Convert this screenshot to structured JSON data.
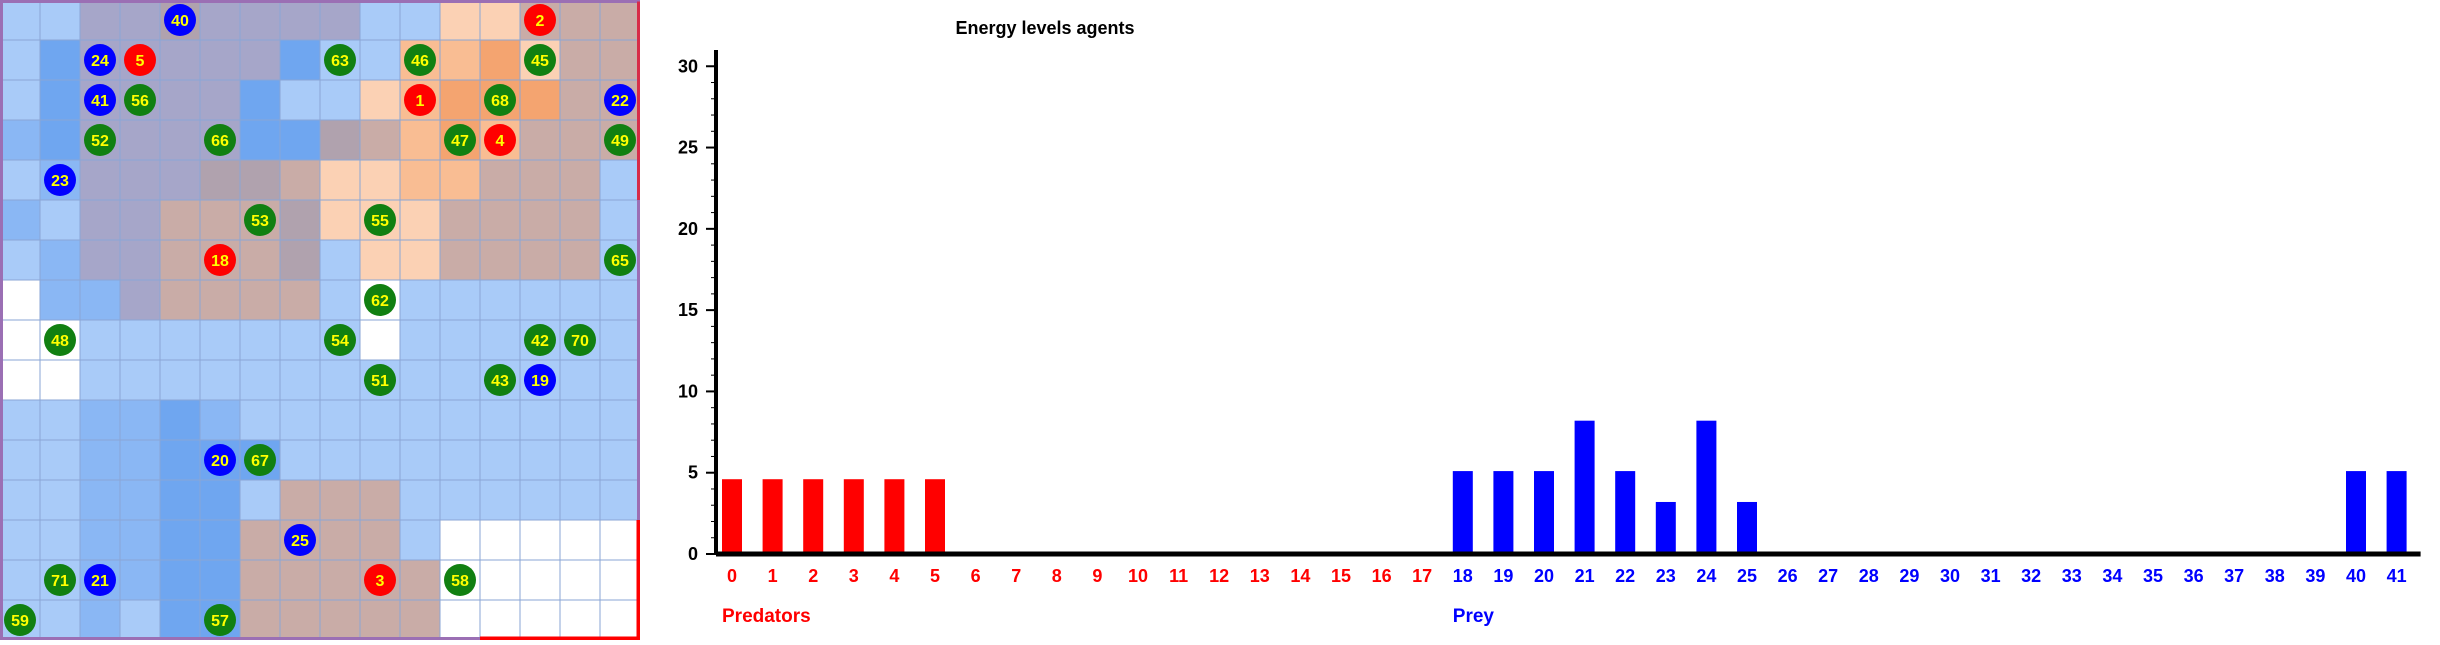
{
  "grid": {
    "rows": 16,
    "cols": 16,
    "colors": {
      "white": "#ffffff",
      "blue_light": "#a9cbf8",
      "blue_mid": "#8ab7f4",
      "blue_dark": "#6fa6f0",
      "grey_blue": "#a6a6c9",
      "grey_brown": "#b0a2ae",
      "brown": "#c9aca7",
      "peach_light": "#fbd1b4",
      "peach": "#f9bd93",
      "orange": "#f4a470",
      "border_red": "#ff0000",
      "border_purple": "#9b6fb4",
      "predator": "#ff0000",
      "prey": "#0000ff",
      "plant": "#118011",
      "agent_text": "#ffff00"
    },
    "palette_keys": [
      "white",
      "blue_light",
      "blue_mid",
      "blue_dark",
      "grey_blue",
      "grey_brown",
      "brown",
      "peach_light",
      "peach",
      "orange"
    ],
    "cells": [
      "1144544441177666",
      "1344444311889766",
      "1344443117899966",
      "2344443356898666",
      "1244455677886661",
      "2144666577766661",
      "1244666517766661",
      "0224666610111111",
      "0011111110111111",
      "0011111111111111",
      "1122321111111111",
      "1122333111111111",
      "1122331666111111",
      "1122336666100000",
      "1122336666600000",
      "1121336666600000"
    ],
    "agents": [
      {
        "id": "40",
        "kind": "prey",
        "row": 0,
        "col": 4
      },
      {
        "id": "2",
        "kind": "predator",
        "row": 0,
        "col": 13
      },
      {
        "id": "24",
        "kind": "prey",
        "row": 1,
        "col": 2
      },
      {
        "id": "5",
        "kind": "predator",
        "row": 1,
        "col": 3
      },
      {
        "id": "63",
        "kind": "plant",
        "row": 1,
        "col": 8
      },
      {
        "id": "46",
        "kind": "plant",
        "row": 1,
        "col": 10
      },
      {
        "id": "45",
        "kind": "plant",
        "row": 1,
        "col": 13
      },
      {
        "id": "41",
        "kind": "prey",
        "row": 2,
        "col": 2
      },
      {
        "id": "56",
        "kind": "plant",
        "row": 2,
        "col": 3
      },
      {
        "id": "1",
        "kind": "predator",
        "row": 2,
        "col": 10
      },
      {
        "id": "68",
        "kind": "plant",
        "row": 2,
        "col": 12
      },
      {
        "id": "22",
        "kind": "prey",
        "row": 2,
        "col": 15
      },
      {
        "id": "52",
        "kind": "plant",
        "row": 3,
        "col": 2
      },
      {
        "id": "66",
        "kind": "plant",
        "row": 3,
        "col": 5
      },
      {
        "id": "47",
        "kind": "plant",
        "row": 3,
        "col": 11
      },
      {
        "id": "4",
        "kind": "predator",
        "row": 3,
        "col": 12
      },
      {
        "id": "49",
        "kind": "plant",
        "row": 3,
        "col": 15
      },
      {
        "id": "23",
        "kind": "prey",
        "row": 4,
        "col": 1
      },
      {
        "id": "53",
        "kind": "plant",
        "row": 5,
        "col": 6
      },
      {
        "id": "55",
        "kind": "plant",
        "row": 5,
        "col": 9
      },
      {
        "id": "18",
        "kind": "predator",
        "row": 6,
        "col": 5
      },
      {
        "id": "65",
        "kind": "plant",
        "row": 6,
        "col": 15
      },
      {
        "id": "62",
        "kind": "plant",
        "row": 7,
        "col": 9
      },
      {
        "id": "48",
        "kind": "plant",
        "row": 8,
        "col": 1
      },
      {
        "id": "54",
        "kind": "plant",
        "row": 8,
        "col": 8
      },
      {
        "id": "42",
        "kind": "plant",
        "row": 8,
        "col": 13
      },
      {
        "id": "70",
        "kind": "plant",
        "row": 8,
        "col": 14
      },
      {
        "id": "51",
        "kind": "plant",
        "row": 9,
        "col": 9
      },
      {
        "id": "43",
        "kind": "plant",
        "row": 9,
        "col": 12
      },
      {
        "id": "19",
        "kind": "prey",
        "row": 9,
        "col": 13
      },
      {
        "id": "20",
        "kind": "prey",
        "row": 11,
        "col": 5
      },
      {
        "id": "67",
        "kind": "plant",
        "row": 11,
        "col": 6
      },
      {
        "id": "25",
        "kind": "prey",
        "row": 13,
        "col": 7
      },
      {
        "id": "71",
        "kind": "plant",
        "row": 14,
        "col": 1
      },
      {
        "id": "21",
        "kind": "prey",
        "row": 14,
        "col": 2
      },
      {
        "id": "3",
        "kind": "predator",
        "row": 14,
        "col": 9
      },
      {
        "id": "58",
        "kind": "plant",
        "row": 14,
        "col": 11
      },
      {
        "id": "59",
        "kind": "plant",
        "row": 15,
        "col": 0
      },
      {
        "id": "57",
        "kind": "plant",
        "row": 15,
        "col": 5
      }
    ]
  },
  "chart_data": {
    "type": "bar",
    "title": "Energy levels agents",
    "xlabel": "",
    "ylabel": "",
    "ylim": [
      0,
      31
    ],
    "yticks": [
      "0",
      "5",
      "10",
      "15",
      "20",
      "25",
      "30"
    ],
    "ytick_values": [
      0,
      5,
      10,
      15,
      20,
      25,
      30
    ],
    "categories": [
      "0",
      "1",
      "2",
      "3",
      "4",
      "5",
      "6",
      "7",
      "8",
      "9",
      "10",
      "11",
      "12",
      "13",
      "14",
      "15",
      "16",
      "17",
      "18",
      "19",
      "20",
      "21",
      "22",
      "23",
      "24",
      "25",
      "26",
      "27",
      "28",
      "29",
      "30",
      "31",
      "32",
      "33",
      "34",
      "35",
      "36",
      "37",
      "38",
      "39",
      "40",
      "41"
    ],
    "category_colors": [
      "#ff0000",
      "#ff0000",
      "#ff0000",
      "#ff0000",
      "#ff0000",
      "#ff0000",
      "#ff0000",
      "#ff0000",
      "#ff0000",
      "#ff0000",
      "#ff0000",
      "#ff0000",
      "#ff0000",
      "#ff0000",
      "#ff0000",
      "#ff0000",
      "#ff0000",
      "#ff0000",
      "#0000ff",
      "#0000ff",
      "#0000ff",
      "#0000ff",
      "#0000ff",
      "#0000ff",
      "#0000ff",
      "#0000ff",
      "#0000ff",
      "#0000ff",
      "#0000ff",
      "#0000ff",
      "#0000ff",
      "#0000ff",
      "#0000ff",
      "#0000ff",
      "#0000ff",
      "#0000ff",
      "#0000ff",
      "#0000ff",
      "#0000ff",
      "#0000ff",
      "#0000ff",
      "#0000ff"
    ],
    "values": [
      4.6,
      4.6,
      4.6,
      4.6,
      4.6,
      4.6,
      0,
      0,
      0,
      0,
      0,
      0,
      0,
      0,
      0,
      0,
      0,
      0,
      5.1,
      5.1,
      5.1,
      8.2,
      5.1,
      3.2,
      8.2,
      3.2,
      0,
      0,
      0,
      0,
      0,
      0,
      0,
      0,
      0,
      0,
      0,
      0,
      0,
      0,
      5.1,
      5.1
    ],
    "groups": [
      {
        "label": "Predators",
        "color": "#ff0000",
        "start_index": 0
      },
      {
        "label": "Prey",
        "color": "#0000ff",
        "start_index": 18
      }
    ],
    "grid": false
  }
}
